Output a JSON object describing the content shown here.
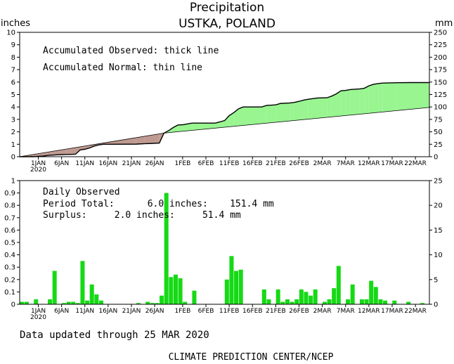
{
  "header": {
    "title": "Precipitation",
    "location": "USTKA,  POLAND",
    "left_unit": "inches",
    "right_unit": "mm"
  },
  "notes": {
    "accum_observed": "Accumulated Observed: thick line",
    "accum_normal": "Accumulated Normal: thin line",
    "daily_observed": "Daily Observed",
    "period_total": "Period Total:      6.0 inches:    151.4 mm",
    "surplus": "Surplus:     2.0 inches:     51.4 mm"
  },
  "footer": {
    "updated": "Data updated through 25 MAR 2020",
    "credit": "CLIMATE PREDICTION CENTER/NCEP"
  },
  "colors": {
    "surplus_fill": "#98f590",
    "deficit_fill": "#bf9a90",
    "bar_fill": "#16d916",
    "line": "#000000"
  },
  "chart_data": [
    {
      "type": "area",
      "title": "Precipitation",
      "subtitle": "USTKA,  POLAND",
      "ylabel": "inches",
      "y2label": "mm",
      "ylim": [
        0,
        10
      ],
      "y2lim": [
        0,
        250
      ],
      "x_range": [
        "2019-12-28",
        "2020-03-25"
      ],
      "yticks": [
        "0",
        "1",
        "2",
        "3",
        "4",
        "5",
        "6",
        "7",
        "8",
        "9",
        "10"
      ],
      "y2ticks": [
        "0",
        "25",
        "50",
        "75",
        "100",
        "125",
        "150",
        "175",
        "200",
        "225",
        "250"
      ],
      "x_ticks": [
        {
          "date": "2020-01-01",
          "label": "1JAN"
        },
        {
          "date": "2020-01-06",
          "label": "6JAN"
        },
        {
          "date": "2020-01-11",
          "label": "11JAN"
        },
        {
          "date": "2020-01-16",
          "label": "16JAN"
        },
        {
          "date": "2020-01-21",
          "label": "21JAN"
        },
        {
          "date": "2020-01-26",
          "label": "26JAN"
        },
        {
          "date": "2020-02-01",
          "label": "1FEB"
        },
        {
          "date": "2020-02-06",
          "label": "6FEB"
        },
        {
          "date": "2020-02-11",
          "label": "11FEB"
        },
        {
          "date": "2020-02-16",
          "label": "16FEB"
        },
        {
          "date": "2020-02-21",
          "label": "21FEB"
        },
        {
          "date": "2020-02-26",
          "label": "26FEB"
        },
        {
          "date": "2020-03-02",
          "label": "2MAR"
        },
        {
          "date": "2020-03-07",
          "label": "7MAR"
        },
        {
          "date": "2020-03-12",
          "label": "12MAR"
        },
        {
          "date": "2020-03-17",
          "label": "17MAR"
        },
        {
          "date": "2020-03-22",
          "label": "22MAR"
        }
      ],
      "x_year_label": {
        "date": "2020-01-01",
        "label": "2020"
      },
      "series": [
        {
          "name": "Accumulated Observed",
          "points": [
            [
              "2019-12-28",
              0.0
            ],
            [
              "2019-12-31",
              0.0
            ],
            [
              "2020-01-02",
              0.05
            ],
            [
              "2020-01-03",
              0.1
            ],
            [
              "2020-01-05",
              0.15
            ],
            [
              "2020-01-06",
              0.17
            ],
            [
              "2020-01-07",
              0.18
            ],
            [
              "2020-01-08",
              0.19
            ],
            [
              "2020-01-09",
              0.2
            ],
            [
              "2020-01-10",
              0.55
            ],
            [
              "2020-01-11",
              0.6
            ],
            [
              "2020-01-12",
              0.7
            ],
            [
              "2020-01-13",
              0.85
            ],
            [
              "2020-01-14",
              0.95
            ],
            [
              "2020-01-15",
              1.0
            ],
            [
              "2020-01-17",
              1.0
            ],
            [
              "2020-01-22",
              1.01
            ],
            [
              "2020-01-24",
              1.05
            ],
            [
              "2020-01-25",
              1.06
            ],
            [
              "2020-01-27",
              1.1
            ],
            [
              "2020-01-28",
              1.9
            ],
            [
              "2020-01-29",
              2.1
            ],
            [
              "2020-01-30",
              2.35
            ],
            [
              "2020-01-31",
              2.55
            ],
            [
              "2020-02-01",
              2.57
            ],
            [
              "2020-02-03",
              2.7
            ],
            [
              "2020-02-05",
              2.7
            ],
            [
              "2020-02-08",
              2.7
            ],
            [
              "2020-02-10",
              2.9
            ],
            [
              "2020-02-11",
              3.3
            ],
            [
              "2020-02-12",
              3.55
            ],
            [
              "2020-02-13",
              3.85
            ],
            [
              "2020-02-14",
              4.0
            ],
            [
              "2020-02-18",
              4.0
            ],
            [
              "2020-02-19",
              4.12
            ],
            [
              "2020-02-21",
              4.17
            ],
            [
              "2020-02-22",
              4.28
            ],
            [
              "2020-02-24",
              4.32
            ],
            [
              "2020-02-25",
              4.37
            ],
            [
              "2020-02-26",
              4.45
            ],
            [
              "2020-02-27",
              4.55
            ],
            [
              "2020-02-28",
              4.62
            ],
            [
              "2020-03-01",
              4.72
            ],
            [
              "2020-03-03",
              4.74
            ],
            [
              "2020-03-04",
              4.87
            ],
            [
              "2020-03-05",
              5.05
            ],
            [
              "2020-03-06",
              5.3
            ],
            [
              "2020-03-07",
              5.33
            ],
            [
              "2020-03-08",
              5.4
            ],
            [
              "2020-03-10",
              5.45
            ],
            [
              "2020-03-11",
              5.5
            ],
            [
              "2020-03-12",
              5.7
            ],
            [
              "2020-03-13",
              5.82
            ],
            [
              "2020-03-14",
              5.88
            ],
            [
              "2020-03-15",
              5.92
            ],
            [
              "2020-03-18",
              5.95
            ],
            [
              "2020-03-21",
              5.96
            ],
            [
              "2020-03-25",
              5.96
            ]
          ]
        },
        {
          "name": "Accumulated Normal",
          "points": [
            [
              "2019-12-28",
              0.0
            ],
            [
              "2020-01-28",
              1.9
            ],
            [
              "2020-03-25",
              3.96
            ]
          ]
        }
      ]
    },
    {
      "type": "bar",
      "title": "Daily Observed",
      "ylabel": "inches",
      "y2label": "mm",
      "ylim": [
        0,
        1.0
      ],
      "y2lim": [
        0,
        25
      ],
      "yticks": [
        "0",
        "0.1",
        "0.2",
        "0.3",
        "0.4",
        "0.5",
        "0.6",
        "0.7",
        "0.8",
        "0.9",
        "1"
      ],
      "y2ticks": [
        "0",
        "5",
        "10",
        "15",
        "20",
        "25"
      ],
      "x_range": [
        "2019-12-28",
        "2020-03-25"
      ],
      "values": [
        [
          "2019-12-28",
          0.02
        ],
        [
          "2019-12-29",
          0.02
        ],
        [
          "2019-12-31",
          0.04
        ],
        [
          "2020-01-03",
          0.04
        ],
        [
          "2020-01-04",
          0.27
        ],
        [
          "2020-01-06",
          0.01
        ],
        [
          "2020-01-07",
          0.02
        ],
        [
          "2020-01-08",
          0.02
        ],
        [
          "2020-01-09",
          0.01
        ],
        [
          "2020-01-10",
          0.35
        ],
        [
          "2020-01-11",
          0.03
        ],
        [
          "2020-01-12",
          0.16
        ],
        [
          "2020-01-13",
          0.08
        ],
        [
          "2020-01-14",
          0.03
        ],
        [
          "2020-01-22",
          0.01
        ],
        [
          "2020-01-24",
          0.02
        ],
        [
          "2020-01-25",
          0.01
        ],
        [
          "2020-01-26",
          0.01
        ],
        [
          "2020-01-27",
          0.07
        ],
        [
          "2020-01-28",
          0.9
        ],
        [
          "2020-01-29",
          0.22
        ],
        [
          "2020-01-30",
          0.24
        ],
        [
          "2020-01-31",
          0.21
        ],
        [
          "2020-02-01",
          0.02
        ],
        [
          "2020-02-03",
          0.11
        ],
        [
          "2020-02-10",
          0.2
        ],
        [
          "2020-02-11",
          0.39
        ],
        [
          "2020-02-12",
          0.27
        ],
        [
          "2020-02-13",
          0.28
        ],
        [
          "2020-02-18",
          0.12
        ],
        [
          "2020-02-19",
          0.04
        ],
        [
          "2020-02-21",
          0.12
        ],
        [
          "2020-02-22",
          0.02
        ],
        [
          "2020-02-23",
          0.04
        ],
        [
          "2020-02-24",
          0.02
        ],
        [
          "2020-02-25",
          0.04
        ],
        [
          "2020-02-26",
          0.12
        ],
        [
          "2020-02-27",
          0.1
        ],
        [
          "2020-02-28",
          0.07
        ],
        [
          "2020-02-29",
          0.12
        ],
        [
          "2020-03-02",
          0.02
        ],
        [
          "2020-03-03",
          0.04
        ],
        [
          "2020-03-04",
          0.13
        ],
        [
          "2020-03-05",
          0.31
        ],
        [
          "2020-03-07",
          0.04
        ],
        [
          "2020-03-08",
          0.16
        ],
        [
          "2020-03-10",
          0.04
        ],
        [
          "2020-03-11",
          0.04
        ],
        [
          "2020-03-12",
          0.19
        ],
        [
          "2020-03-13",
          0.14
        ],
        [
          "2020-03-14",
          0.04
        ],
        [
          "2020-03-15",
          0.03
        ],
        [
          "2020-03-17",
          0.03
        ],
        [
          "2020-03-20",
          0.02
        ],
        [
          "2020-03-23",
          0.01
        ]
      ]
    }
  ]
}
